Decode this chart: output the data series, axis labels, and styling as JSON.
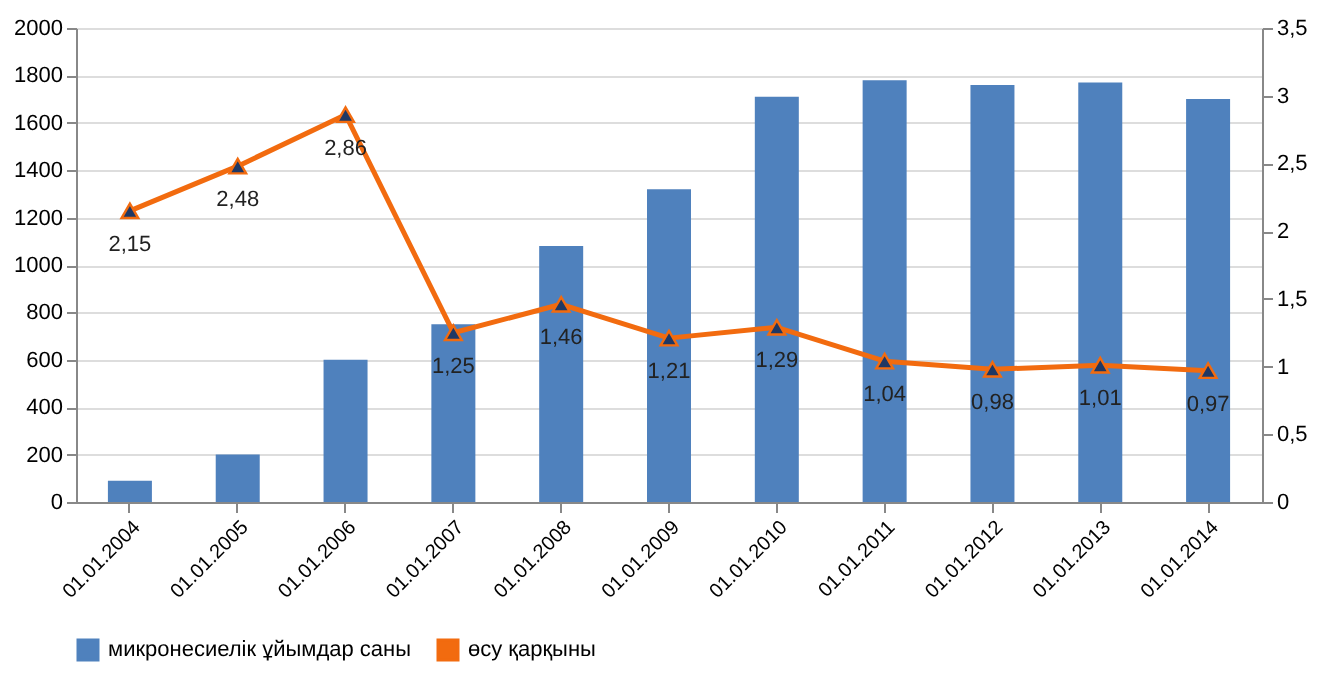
{
  "chart_data": {
    "type": "bar",
    "categories": [
      "01.01.2004",
      "01.01.2005",
      "01.01.2006",
      "01.01.2007",
      "01.01.2008",
      "01.01.2009",
      "01.01.2010",
      "01.01.2011",
      "01.01.2012",
      "01.01.2013",
      "01.01.2014"
    ],
    "series": [
      {
        "name": "микронесиелік ұйымдар саны",
        "color": "#4f81bd",
        "values": [
          90,
          200,
          600,
          750,
          1080,
          1320,
          1710,
          1780,
          1760,
          1770,
          1700
        ]
      },
      {
        "name": "өсу қарқыны",
        "type": "line",
        "axis": "y2",
        "color": "#f26b0f",
        "marker": "triangle",
        "values": [
          2.15,
          2.48,
          2.86,
          1.25,
          1.46,
          1.21,
          1.29,
          1.04,
          0.98,
          1.01,
          0.97
        ],
        "value_labels": [
          "2,15",
          "2,48",
          "2,86",
          "1,25",
          "1,46",
          "1,21",
          "1,29",
          "1,04",
          "0,98",
          "1,01",
          "0,97"
        ]
      }
    ],
    "ylim": [
      0,
      2000
    ],
    "yticks": [
      0,
      200,
      400,
      600,
      800,
      1000,
      1200,
      1400,
      1600,
      1800,
      2000
    ],
    "y2lim": [
      0,
      3.5
    ],
    "y2ticks": [
      0,
      {
        "value": 0.5,
        "label": "0,5"
      },
      1,
      {
        "value": 1.5,
        "label": "1,5"
      },
      2,
      {
        "value": 2.5,
        "label": "2,5"
      },
      3,
      {
        "value": 3.5,
        "label": "3,5"
      }
    ],
    "grid": "y",
    "legend": "bottom"
  }
}
